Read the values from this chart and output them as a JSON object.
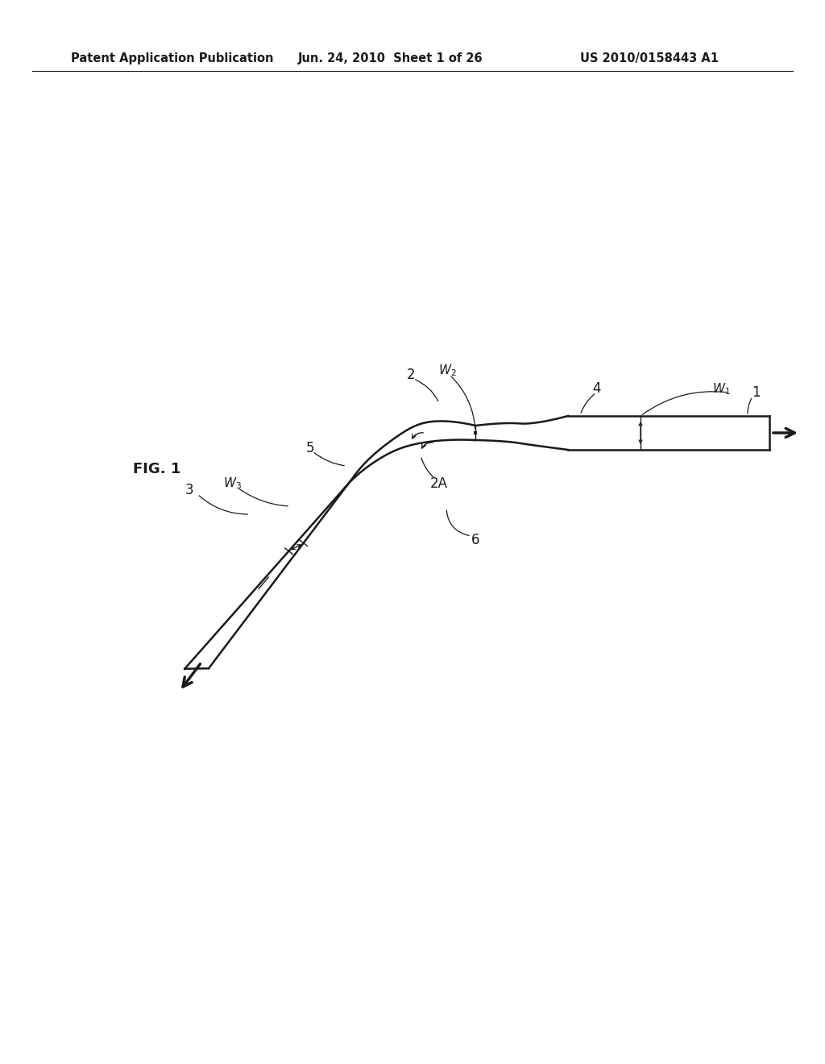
{
  "bg_color": "#ffffff",
  "line_color": "#1a1a1a",
  "header_text1": "Patent Application Publication",
  "header_text2": "Jun. 24, 2010  Sheet 1 of 26",
  "header_text3": "US 2010/0158443 A1",
  "fig_label": "FIG. 1",
  "font_size_header": 10.5,
  "font_size_label": 12,
  "font_size_figlabel": 13,
  "lw_main": 1.8,
  "lw_thin": 1.0
}
